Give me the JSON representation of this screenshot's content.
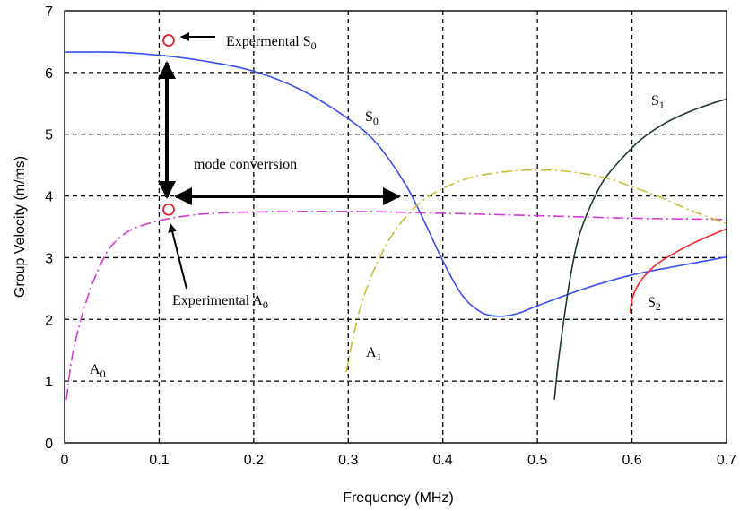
{
  "chart_data": {
    "type": "line",
    "xlabel": "Frequency (MHz)",
    "ylabel": "Group Velocity (m/ms)",
    "xlim": [
      0,
      0.7
    ],
    "ylim": [
      0,
      7
    ],
    "grid": true,
    "x_ticks": [
      "0",
      "0.1",
      "0.2",
      "0.3",
      "0.4",
      "0.5",
      "0.6",
      "0.7"
    ],
    "y_ticks": [
      "0",
      "1",
      "2",
      "3",
      "4",
      "5",
      "6",
      "7"
    ],
    "series": [
      {
        "name": "S0",
        "color": "#3a4ff0",
        "style": "solid",
        "points": [
          [
            0,
            6.33
          ],
          [
            0.05,
            6.33
          ],
          [
            0.1,
            6.28
          ],
          [
            0.15,
            6.18
          ],
          [
            0.2,
            6.02
          ],
          [
            0.25,
            5.72
          ],
          [
            0.3,
            5.25
          ],
          [
            0.33,
            4.85
          ],
          [
            0.36,
            4.2
          ],
          [
            0.38,
            3.6
          ],
          [
            0.4,
            2.95
          ],
          [
            0.42,
            2.4
          ],
          [
            0.44,
            2.12
          ],
          [
            0.46,
            2.05
          ],
          [
            0.48,
            2.1
          ],
          [
            0.5,
            2.22
          ],
          [
            0.55,
            2.5
          ],
          [
            0.6,
            2.72
          ],
          [
            0.65,
            2.87
          ],
          [
            0.7,
            3.01
          ]
        ]
      },
      {
        "name": "A0",
        "color": "#d63ad6",
        "style": "dashdot",
        "points": [
          [
            0.002,
            0.7
          ],
          [
            0.005,
            1.1
          ],
          [
            0.01,
            1.55
          ],
          [
            0.02,
            2.15
          ],
          [
            0.03,
            2.6
          ],
          [
            0.04,
            2.95
          ],
          [
            0.05,
            3.2
          ],
          [
            0.07,
            3.45
          ],
          [
            0.1,
            3.6
          ],
          [
            0.13,
            3.68
          ],
          [
            0.16,
            3.72
          ],
          [
            0.2,
            3.74
          ],
          [
            0.3,
            3.75
          ],
          [
            0.4,
            3.72
          ],
          [
            0.5,
            3.68
          ],
          [
            0.6,
            3.64
          ],
          [
            0.7,
            3.62
          ]
        ]
      },
      {
        "name": "A1",
        "color": "#c8c030",
        "style": "dashdot",
        "points": [
          [
            0.298,
            1.15
          ],
          [
            0.305,
            1.7
          ],
          [
            0.315,
            2.3
          ],
          [
            0.33,
            2.9
          ],
          [
            0.35,
            3.45
          ],
          [
            0.375,
            3.88
          ],
          [
            0.4,
            4.12
          ],
          [
            0.43,
            4.3
          ],
          [
            0.47,
            4.4
          ],
          [
            0.5,
            4.42
          ],
          [
            0.53,
            4.4
          ],
          [
            0.57,
            4.3
          ],
          [
            0.6,
            4.15
          ],
          [
            0.63,
            3.98
          ],
          [
            0.66,
            3.78
          ],
          [
            0.7,
            3.55
          ]
        ]
      },
      {
        "name": "S1",
        "color": "#1f3a2a",
        "style": "solid",
        "points": [
          [
            0.518,
            0.7
          ],
          [
            0.522,
            1.3
          ],
          [
            0.528,
            2.0
          ],
          [
            0.535,
            2.7
          ],
          [
            0.543,
            3.3
          ],
          [
            0.555,
            3.8
          ],
          [
            0.57,
            4.25
          ],
          [
            0.59,
            4.62
          ],
          [
            0.61,
            4.92
          ],
          [
            0.635,
            5.18
          ],
          [
            0.66,
            5.36
          ],
          [
            0.685,
            5.5
          ],
          [
            0.7,
            5.57
          ]
        ]
      },
      {
        "name": "S2",
        "color": "#ff2a2a",
        "style": "solid",
        "points": [
          [
            0.598,
            2.1
          ],
          [
            0.6,
            2.32
          ],
          [
            0.605,
            2.52
          ],
          [
            0.612,
            2.68
          ],
          [
            0.625,
            2.88
          ],
          [
            0.64,
            3.03
          ],
          [
            0.66,
            3.2
          ],
          [
            0.68,
            3.34
          ],
          [
            0.7,
            3.47
          ]
        ]
      }
    ],
    "markers": [
      {
        "name": "Experimental S0 point",
        "x": 0.11,
        "y": 6.52,
        "color": "#e8202a"
      },
      {
        "name": "Experimental A0 point",
        "x": 0.11,
        "y": 3.78,
        "color": "#e8202a"
      }
    ],
    "annotations": {
      "exp_s0": {
        "text": "Expermental S",
        "sub": "0"
      },
      "exp_a0": {
        "text": "Experimental A",
        "sub": "0"
      },
      "mode_conversion": "mode converrsion"
    },
    "curve_labels": {
      "s0": {
        "text": "S",
        "sub": "0"
      },
      "s1": {
        "text": "S",
        "sub": "1"
      },
      "s2": {
        "text": "S",
        "sub": "2"
      },
      "a0": {
        "text": "A",
        "sub": "0"
      },
      "a1": {
        "text": "A",
        "sub": "1"
      }
    }
  }
}
